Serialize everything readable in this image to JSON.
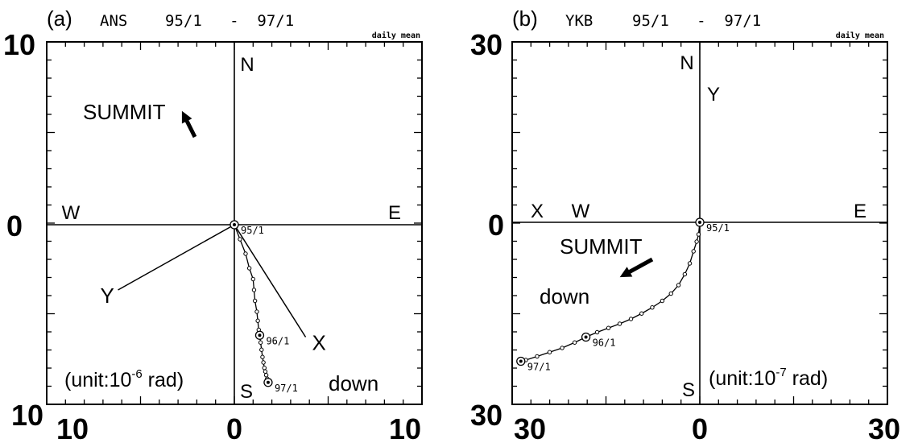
{
  "chart_data": [
    {
      "type": "scatter",
      "panel_label": "(a)",
      "station": "ANS",
      "period": "95/1   -  97/1",
      "note": "daily mean",
      "unit_text": "(unit:10",
      "unit_exp": "-6",
      "unit_tail": " rad)",
      "xlim": [
        -10,
        10
      ],
      "ylim": [
        -10,
        10
      ],
      "y_top_label": "10",
      "y_zero_label": "0",
      "y_bottom_label": "10",
      "x_left_label": "10",
      "x_zero_label": "0",
      "x_right_label": "10",
      "compass": {
        "N": "N",
        "S": "S",
        "E": "E",
        "W": "W"
      },
      "summit_label": "SUMMIT",
      "summit_arrow_dir": [
        -0.5,
        1
      ],
      "down_label": "down",
      "component_axes": [
        {
          "name": "Y",
          "end": [
            -6.2,
            -3.6
          ]
        },
        {
          "name": "X",
          "end": [
            3.8,
            -6.2
          ]
        }
      ],
      "series": [
        {
          "x": [
            0,
            0.3,
            0.6,
            0.8,
            1.0,
            1.05,
            1.1,
            1.2,
            1.25,
            1.3,
            1.35,
            1.4,
            1.45,
            1.5,
            1.55,
            1.6,
            1.65,
            1.7,
            1.75,
            1.8
          ],
          "y": [
            0,
            -0.8,
            -1.6,
            -2.4,
            -3.0,
            -3.6,
            -4.2,
            -4.8,
            -5.3,
            -5.8,
            -6.1,
            -6.5,
            -6.9,
            -7.3,
            -7.6,
            -7.9,
            -8.1,
            -8.3,
            -8.5,
            -8.7
          ]
        }
      ],
      "epochs": [
        {
          "label": "95/1",
          "x": 0,
          "y": 0
        },
        {
          "label": "96/1",
          "x": 1.35,
          "y": -6.1
        },
        {
          "label": "97/1",
          "x": 1.8,
          "y": -8.7
        }
      ]
    },
    {
      "type": "scatter",
      "panel_label": "(b)",
      "station": "YKB",
      "period": "95/1   -  97/1",
      "note": "daily mean",
      "unit_text": "(unit:10",
      "unit_exp": "-7",
      "unit_tail": " rad)",
      "xlim": [
        -30,
        30
      ],
      "ylim": [
        -30,
        30
      ],
      "y_top_label": "30",
      "y_zero_label": "0",
      "y_bottom_label": "30",
      "x_left_label": "30",
      "x_zero_label": "0",
      "x_right_label": "30",
      "compass": {
        "N": "N",
        "S": "S",
        "E": "E",
        "W": "W"
      },
      "x_axis_label": "X",
      "y_axis_label": "Y",
      "summit_label": "SUMMIT",
      "summit_arrow_dir": [
        -1,
        -0.55
      ],
      "down_label": "down",
      "series": [
        {
          "x": [
            0,
            -0.2,
            -0.5,
            -1.0,
            -1.6,
            -2.4,
            -3.4,
            -4.6,
            -6.0,
            -7.6,
            -9.3,
            -11.0,
            -12.8,
            -14.6,
            -16.4,
            -18.2,
            -20.0,
            -22.0,
            -24.0,
            -26.0,
            -27.8,
            -28.6
          ],
          "y": [
            0,
            -2.0,
            -3.2,
            -4.8,
            -6.8,
            -8.6,
            -10.4,
            -11.8,
            -13.0,
            -14.1,
            -15.1,
            -16.0,
            -16.8,
            -17.5,
            -18.2,
            -19.0,
            -19.9,
            -20.8,
            -21.5,
            -22.2,
            -22.8,
            -23.0
          ]
        }
      ],
      "epochs": [
        {
          "label": "95/1",
          "x": 0,
          "y": 0
        },
        {
          "label": "96/1",
          "x": -18.2,
          "y": -19.0
        },
        {
          "label": "97/1",
          "x": -28.6,
          "y": -23.0
        }
      ]
    }
  ]
}
